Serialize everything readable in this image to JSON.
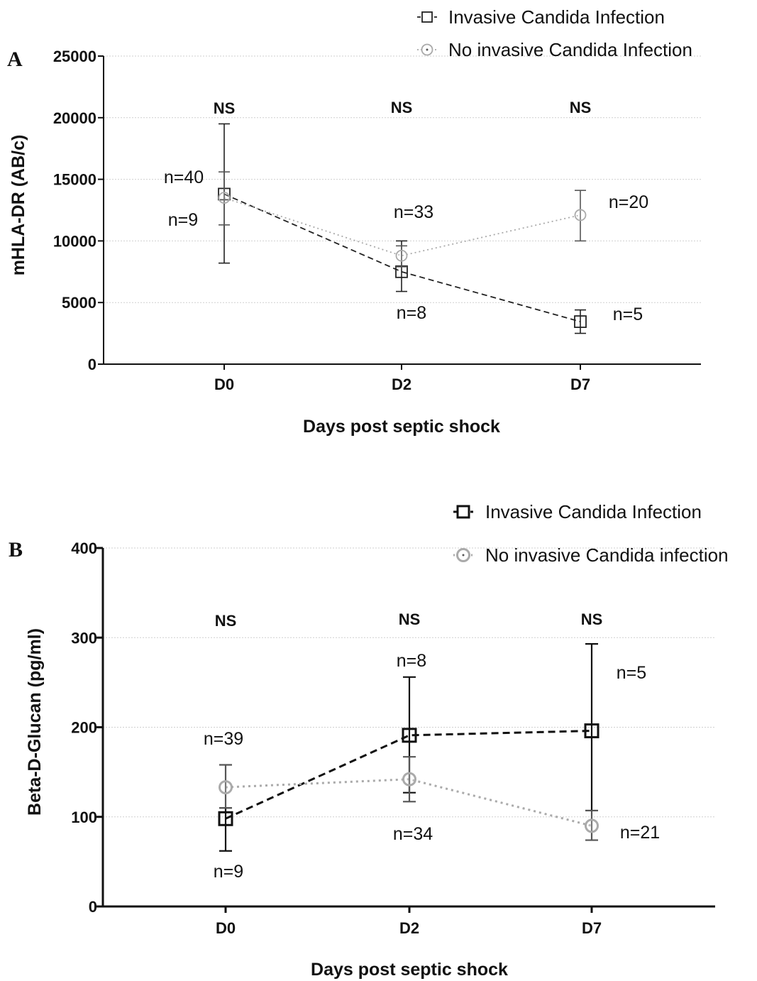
{
  "chart_data": [
    {
      "panel_label": "A",
      "type": "line",
      "ylabel": "mHLA-DR (AB/c)",
      "xlabel": "Days post septic shock",
      "categories": [
        "D0",
        "D2",
        "D7"
      ],
      "ylim": [
        0,
        25000
      ],
      "yticks": [
        0,
        5000,
        10000,
        15000,
        20000,
        25000
      ],
      "grid": true,
      "legend_position": "top-right",
      "series": [
        {
          "name": "Invasive Candida Infection",
          "color": "#222222",
          "style": "dashed",
          "marker": "square",
          "values": [
            13800,
            7500,
            3450
          ],
          "err_low": [
            8200,
            5900,
            2500
          ],
          "err_high": [
            19500,
            10000,
            4400
          ],
          "n_labels": [
            "n=9",
            "n=8",
            "n=5"
          ]
        },
        {
          "name": "No invasive Candida Infection",
          "color": "#aaaaaa",
          "style": "dotted",
          "marker": "circle",
          "values": [
            13500,
            8800,
            12100
          ],
          "err_low": [
            11300,
            7900,
            10000
          ],
          "err_high": [
            15600,
            9600,
            14100
          ],
          "n_labels": [
            "n=40",
            "n=33",
            "n=20"
          ]
        }
      ],
      "significance": [
        "NS",
        "NS",
        "NS"
      ]
    },
    {
      "panel_label": "B",
      "type": "line",
      "ylabel": "Beta-D-Glucan (pg/ml)",
      "xlabel": "Days post septic shock",
      "categories": [
        "D0",
        "D2",
        "D7"
      ],
      "ylim": [
        0,
        400
      ],
      "yticks": [
        0,
        100,
        200,
        300,
        400
      ],
      "grid": true,
      "legend_position": "top-right",
      "series": [
        {
          "name": "Invasive Candida Infection",
          "color": "#111111",
          "style": "dashed",
          "marker": "square",
          "values": [
            98,
            191,
            196
          ],
          "err_low": [
            62,
            127,
            107
          ],
          "err_high": [
            110,
            256,
            293
          ],
          "n_labels": [
            "n=9",
            "n=8",
            "n=5"
          ]
        },
        {
          "name": "No invasive Candida infection",
          "color": "#aaaaaa",
          "style": "dotted",
          "marker": "circle",
          "values": [
            133,
            142,
            90
          ],
          "err_low": [
            110,
            117,
            74
          ],
          "err_high": [
            158,
            167,
            107
          ],
          "n_labels": [
            "n=39",
            "n=34",
            "n=21"
          ]
        }
      ],
      "significance": [
        "NS",
        "NS",
        "NS"
      ]
    }
  ]
}
